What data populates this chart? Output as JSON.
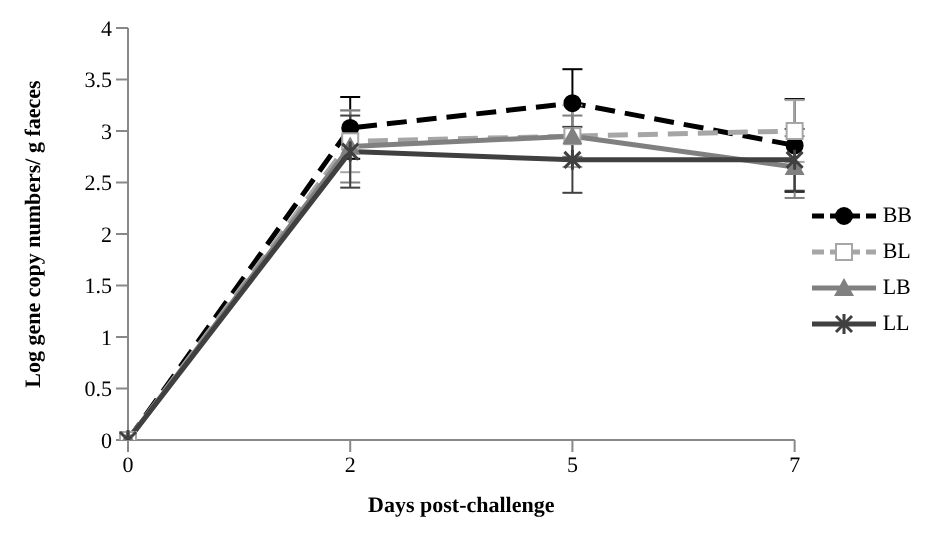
{
  "chart_data": {
    "type": "line",
    "xlabel": "Days post-challenge",
    "ylabel": "Log gene copy numbers/ g faeces",
    "categories": [
      "0",
      "2",
      "5",
      "7"
    ],
    "ylim": [
      0,
      4
    ],
    "yticks": [
      0,
      0.5,
      1,
      1.5,
      2,
      2.5,
      3,
      3.5,
      4
    ],
    "grid": false,
    "legend": "right",
    "series": [
      {
        "name": "BB",
        "color": "#000000",
        "values": [
          0,
          3.03,
          3.27,
          2.86
        ],
        "errors": [
          null,
          0.3,
          0.33,
          0.45
        ],
        "marker": "circle",
        "line_style": "dashed"
      },
      {
        "name": "BL",
        "color": "#a6a6a6",
        "values": [
          0,
          2.9,
          2.95,
          3.0
        ],
        "errors": [
          null,
          0.3,
          0.3,
          0.3
        ],
        "marker": "square",
        "line_style": "dashed"
      },
      {
        "name": "LB",
        "color": "#808080",
        "values": [
          0,
          2.85,
          2.95,
          2.65
        ],
        "errors": [
          null,
          0.35,
          0.2,
          0.3
        ],
        "marker": "triangle",
        "line_style": "solid"
      },
      {
        "name": "LL",
        "color": "#404040",
        "values": [
          0,
          2.8,
          2.72,
          2.72
        ],
        "errors": [
          null,
          0.35,
          0.32,
          0.3
        ],
        "marker": "cross",
        "line_style": "solid"
      }
    ]
  }
}
